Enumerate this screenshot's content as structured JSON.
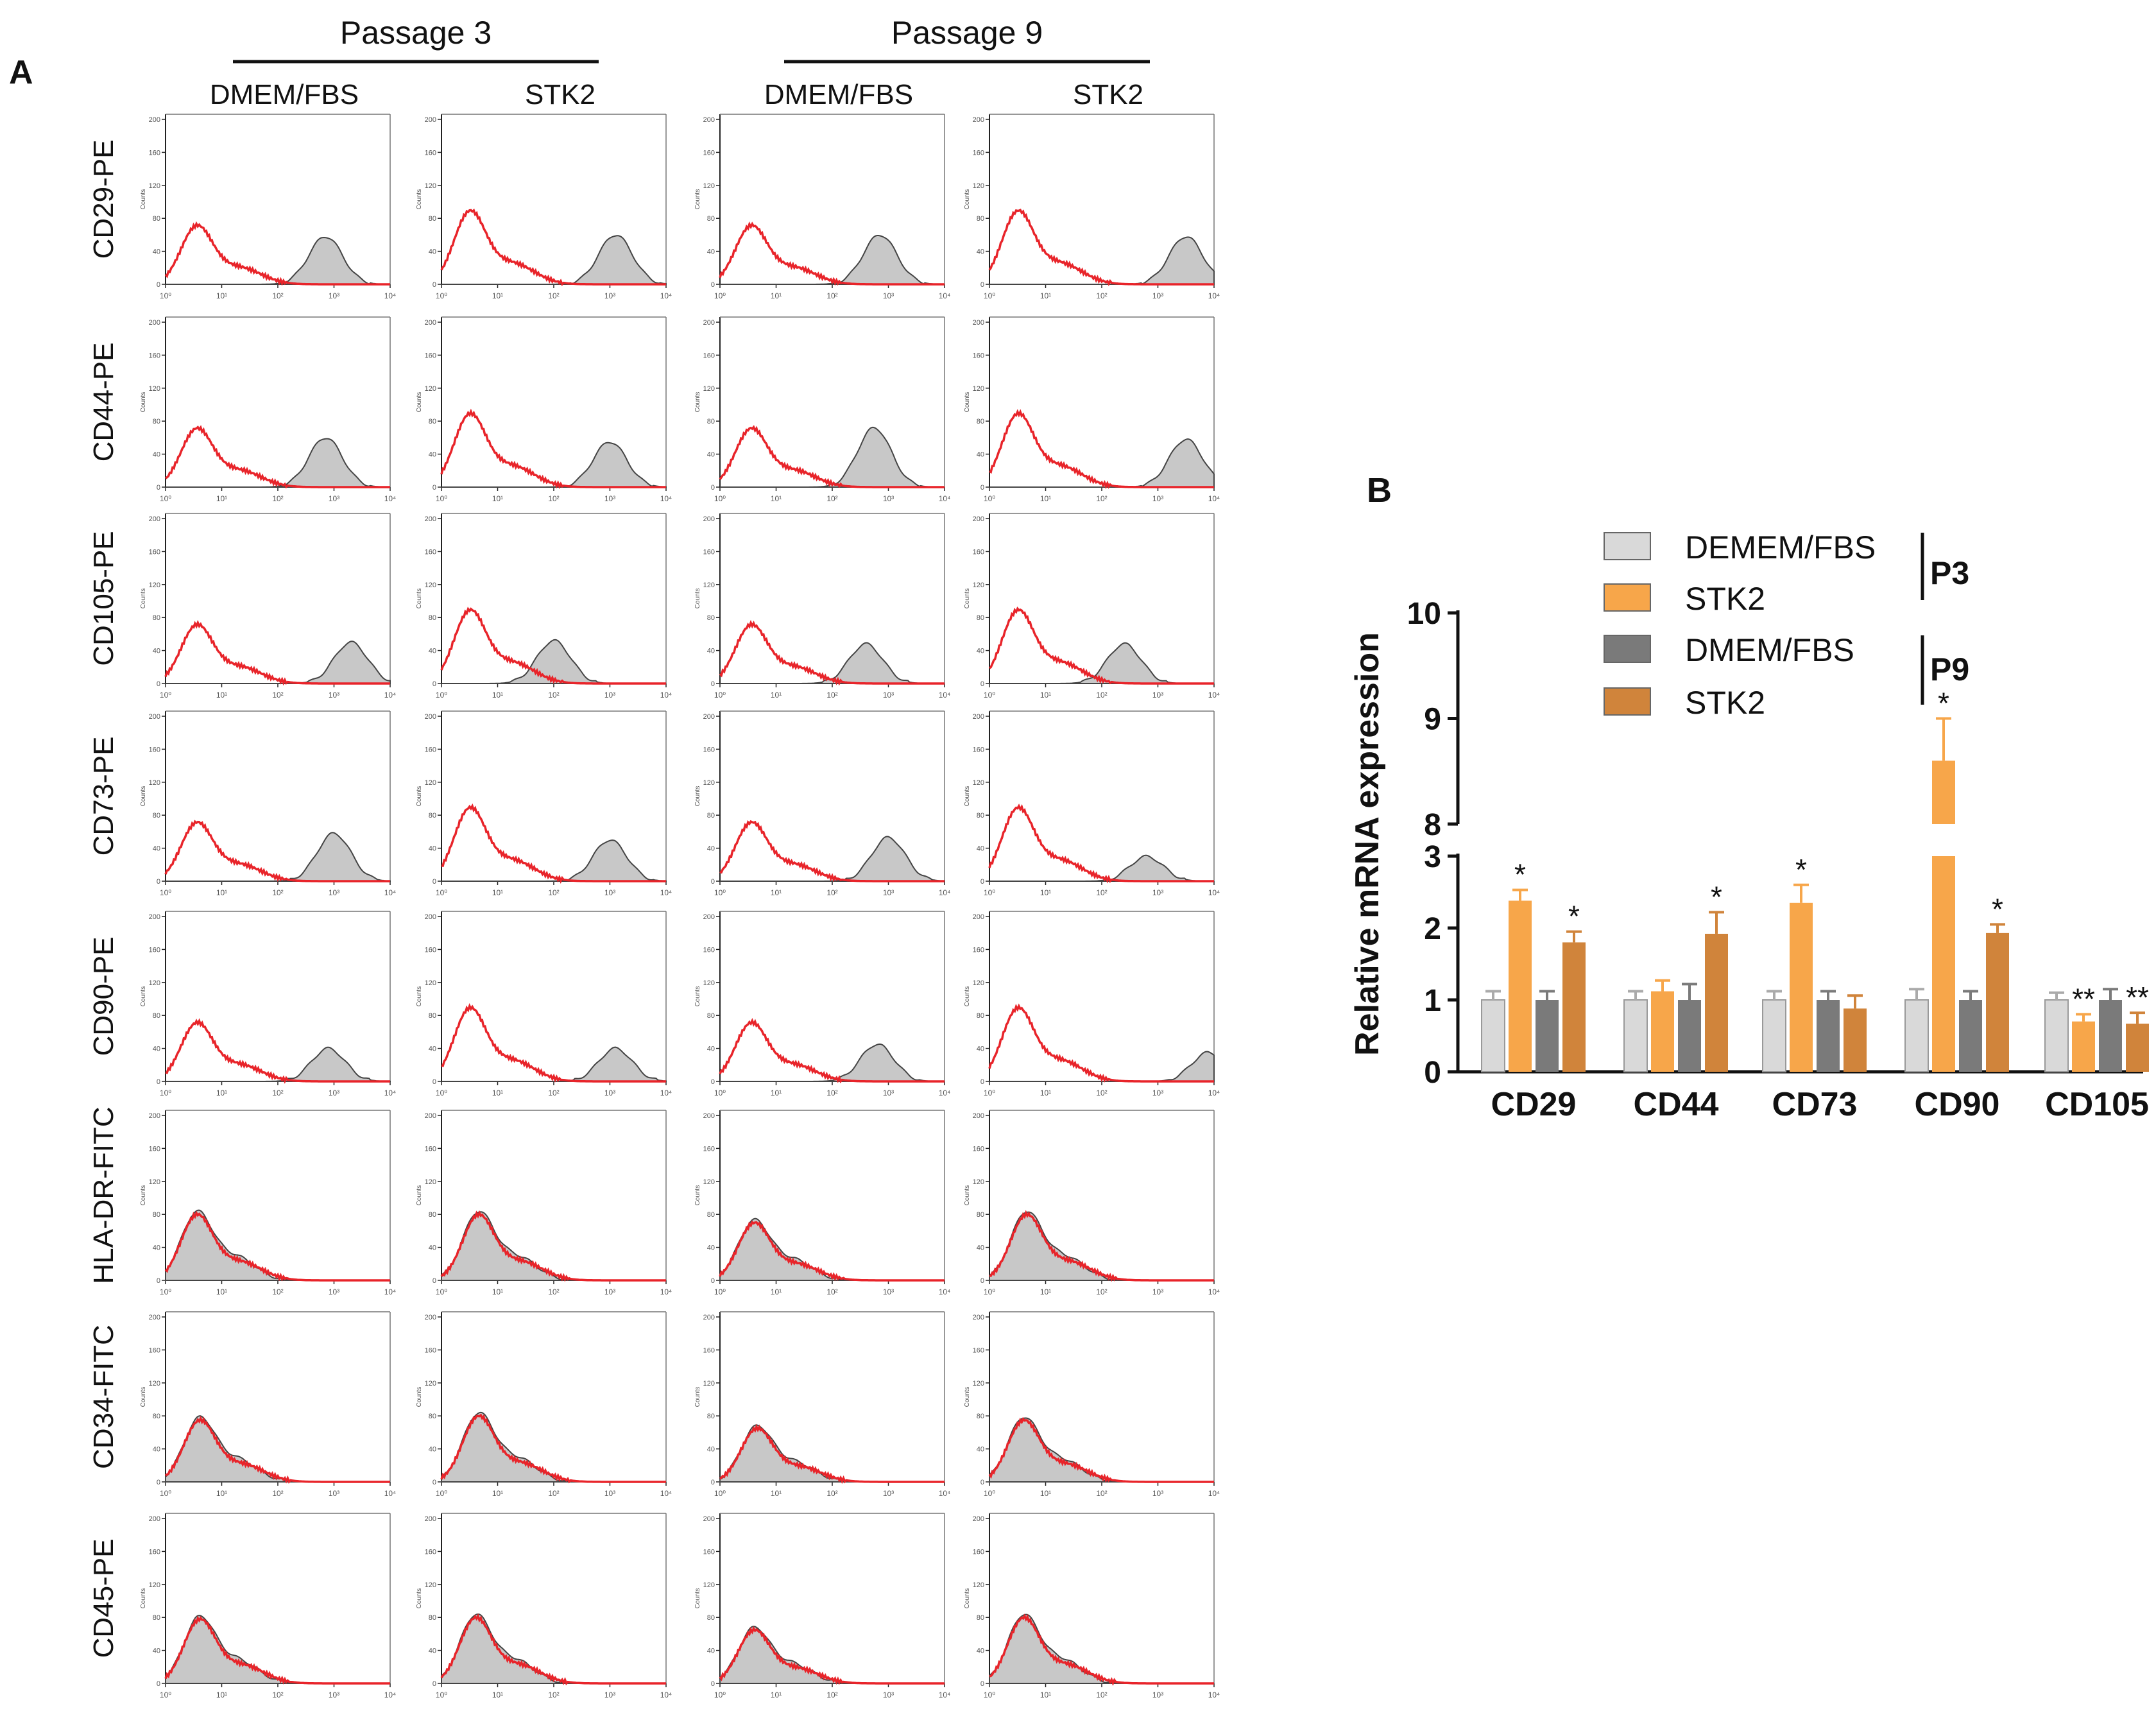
{
  "chart_data": [
    {
      "panel": "A",
      "type": "histogram",
      "panel_label": "A",
      "passages": [
        "Passage 3",
        "Passage 9"
      ],
      "columns": [
        "DMEM/FBS",
        "STK2",
        "DMEM/FBS",
        "STK2"
      ],
      "markers": [
        "CD29-PE",
        "CD44-PE",
        "CD105-PE",
        "CD73-PE",
        "CD90-PE",
        "HLA-DR-FITC",
        "CD34-FITC",
        "CD45-PE"
      ],
      "ylabel": "Counts",
      "yticks": [
        "200",
        "160",
        "120",
        "80",
        "40",
        "0"
      ],
      "xticks": [
        "10⁰",
        "10¹",
        "10²",
        "10³",
        "10⁴"
      ],
      "colors": {
        "control": "#e8242a",
        "stained_fill": "#c8c8c8",
        "stained_line": "#444444"
      },
      "peaks": [
        [
          [
            2.85,
            58
          ],
          [
            3.1,
            60
          ],
          [
            2.85,
            60
          ],
          [
            3.5,
            58
          ]
        ],
        [
          [
            2.85,
            60
          ],
          [
            3.0,
            55
          ],
          [
            2.75,
            72
          ],
          [
            3.5,
            58
          ]
        ],
        [
          [
            3.3,
            50
          ],
          [
            2.0,
            52
          ],
          [
            2.6,
            48
          ],
          [
            2.4,
            48
          ]
        ],
        [
          [
            3.0,
            58
          ],
          [
            3.0,
            50
          ],
          [
            3.0,
            53
          ],
          [
            2.8,
            30
          ]
        ],
        [
          [
            2.9,
            40
          ],
          [
            3.1,
            40
          ],
          [
            2.8,
            45
          ],
          [
            3.9,
            35
          ]
        ],
        [
          [
            0.55,
            80
          ],
          [
            0.65,
            80
          ],
          [
            0.6,
            70
          ],
          [
            0.65,
            80
          ]
        ],
        [
          [
            0.6,
            75
          ],
          [
            0.65,
            80
          ],
          [
            0.65,
            65
          ],
          [
            0.6,
            75
          ]
        ],
        [
          [
            0.6,
            78
          ],
          [
            0.6,
            80
          ],
          [
            0.6,
            65
          ],
          [
            0.6,
            80
          ]
        ]
      ],
      "neg_peaks": [
        0.55,
        0.5,
        0.55,
        0.5
      ]
    },
    {
      "panel": "B",
      "type": "bar",
      "panel_label": "B",
      "ylabel": "Relative mRNA expression",
      "categories": [
        "CD29",
        "CD44",
        "CD73",
        "CD90",
        "CD105"
      ],
      "yticks": [
        "0",
        "1",
        "2",
        "3",
        "8",
        "9",
        "10"
      ],
      "y_break": [
        3,
        8
      ],
      "series": [
        {
          "name": "DEMEM/FBS",
          "group": "P3",
          "color": "#d9d9d9",
          "values": [
            1.0,
            1.0,
            1.0,
            1.0,
            1.0
          ],
          "errors": [
            0.12,
            0.12,
            0.12,
            0.15,
            0.1
          ]
        },
        {
          "name": "STK2",
          "group": "P3",
          "color": "#f7a64a",
          "values": [
            2.38,
            1.12,
            2.35,
            8.6,
            0.7
          ],
          "errors": [
            0.15,
            0.15,
            0.25,
            0.4,
            0.1
          ]
        },
        {
          "name": "DMEM/FBS",
          "group": "P9",
          "color": "#7a7a7a",
          "values": [
            1.0,
            1.0,
            1.0,
            1.0,
            1.0
          ],
          "errors": [
            0.12,
            0.22,
            0.12,
            0.12,
            0.15
          ]
        },
        {
          "name": "STK2",
          "group": "P9",
          "color": "#d0843b",
          "values": [
            1.8,
            1.92,
            0.88,
            1.93,
            0.67
          ],
          "errors": [
            0.15,
            0.3,
            0.18,
            0.12,
            0.15
          ]
        }
      ],
      "significance": [
        [
          "",
          "*",
          "",
          "*"
        ],
        [
          "",
          "",
          "",
          "*"
        ],
        [
          "",
          "*",
          "",
          ""
        ],
        [
          "",
          "*",
          "",
          "*"
        ],
        [
          "",
          "**",
          "",
          "**"
        ]
      ],
      "legend": {
        "labels": [
          "DEMEM/FBS",
          "STK2",
          "DMEM/FBS",
          "STK2"
        ],
        "groups": [
          "P3",
          "P9"
        ]
      }
    }
  ]
}
